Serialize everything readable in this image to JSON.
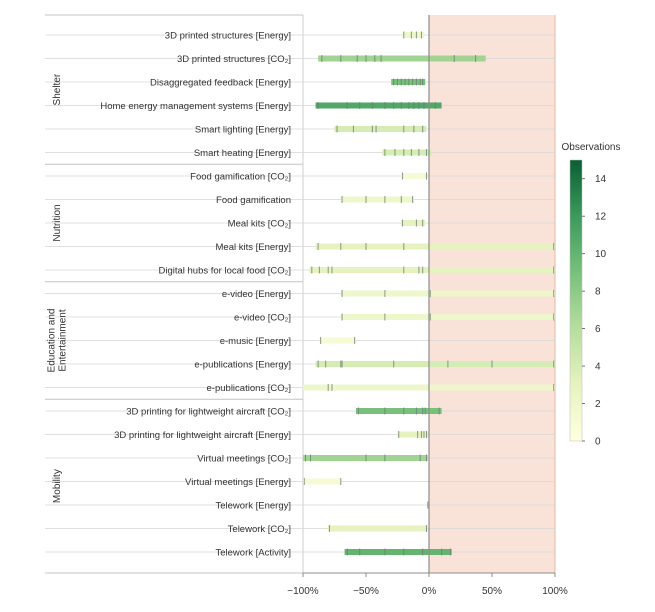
{
  "chart_data": {
    "type": "range-bar",
    "x_axis": {
      "ticks": [
        -100,
        -50,
        0,
        50,
        100
      ],
      "tick_labels": [
        "−100%",
        "−50%",
        "0%",
        "50%",
        "100%"
      ],
      "range": [
        -100,
        100
      ]
    },
    "colorbar": {
      "title": "Observations",
      "range": [
        0,
        15
      ],
      "ticks": [
        0,
        2,
        4,
        6,
        8,
        10,
        12,
        14
      ],
      "tick_labels": [
        "0",
        "2",
        "4",
        "6",
        "8",
        "10",
        "12",
        "14"
      ],
      "colors": [
        "#ffffe0",
        "#e6f3c0",
        "#b7dd9e",
        "#78c07c",
        "#3c9a5c",
        "#0b5e34"
      ]
    },
    "positive_region_color": "#f9e3d9",
    "groups": [
      {
        "label": "Shelter",
        "rows": [
          0,
          5
        ]
      },
      {
        "label": "Nutrition",
        "rows": [
          6,
          10
        ]
      },
      {
        "label": "Education and Entertainment",
        "label_lines": [
          "Education and",
          "Entertainment"
        ],
        "rows": [
          11,
          15
        ]
      },
      {
        "label": "Mobility",
        "rows": [
          16,
          22
        ]
      }
    ],
    "rows": [
      {
        "label": "3D printed structures [Energy]",
        "min": -21,
        "max": -4,
        "observations": 2,
        "markers": [
          -20,
          -14,
          -10,
          -6
        ]
      },
      {
        "label": "3D printed structures [CO₂]",
        "min": -88,
        "max": 45,
        "observations": 7,
        "markers": [
          -85,
          -70,
          -57,
          -50,
          -43,
          -38,
          0,
          20,
          37
        ]
      },
      {
        "label": "Disaggregated feedback [Energy]",
        "min": -30,
        "max": -3,
        "observations": 9,
        "markers": [
          -28,
          -25,
          -22,
          -19,
          -16,
          -13,
          -10,
          -7,
          -5
        ]
      },
      {
        "label": "Home energy management systems [Energy]",
        "min": -90,
        "max": 10,
        "observations": 11,
        "markers": [
          -88,
          -65,
          -55,
          -45,
          -35,
          -28,
          -22,
          -16,
          -12,
          -8,
          -4,
          5
        ]
      },
      {
        "label": "Smart lighting [Energy]",
        "min": -75,
        "max": -2,
        "observations": 4,
        "markers": [
          -73,
          -60,
          -45,
          -42,
          -20,
          -12,
          -5
        ]
      },
      {
        "label": "Smart heating [Energy]",
        "min": -37,
        "max": 2,
        "observations": 4,
        "markers": [
          -35,
          -27,
          -20,
          -14,
          -8,
          -2
        ]
      },
      {
        "label": "Food gamification [CO₂]",
        "min": -22,
        "max": -1,
        "observations": 1,
        "markers": [
          -21,
          -2
        ]
      },
      {
        "label": "Food gamification",
        "min": -70,
        "max": -12,
        "observations": 2,
        "markers": [
          -69,
          -50,
          -35,
          -22,
          -13
        ]
      },
      {
        "label": "Meal kits [CO₂]",
        "min": -22,
        "max": -3,
        "observations": 3,
        "markers": [
          -21,
          -10,
          -5
        ]
      },
      {
        "label": "Meal kits [Energy]",
        "min": -90,
        "max": 100,
        "observations": 3,
        "markers": [
          -88,
          -70,
          -50,
          -20,
          99
        ]
      },
      {
        "label": "Digital hubs for local food [CO₂]",
        "min": -95,
        "max": 100,
        "observations": 3,
        "markers": [
          -93,
          -87,
          -80,
          -77,
          -20,
          -8,
          -5,
          99
        ]
      },
      {
        "label": "e-video [Energy]",
        "min": -70,
        "max": 100,
        "observations": 2,
        "markers": [
          -69,
          -35,
          1,
          99
        ]
      },
      {
        "label": "e-video [CO₂]",
        "min": -70,
        "max": 100,
        "observations": 2,
        "markers": [
          -69,
          -35,
          1,
          99
        ]
      },
      {
        "label": "e-music [Energy]",
        "min": -87,
        "max": -58,
        "observations": 1,
        "markers": [
          -86,
          -59
        ]
      },
      {
        "label": "e-publications [Energy]",
        "min": -90,
        "max": 100,
        "observations": 4,
        "markers": [
          -88,
          -82,
          -70,
          -69,
          -28,
          15,
          50,
          99
        ]
      },
      {
        "label": "e-publications [CO₂]",
        "min": -100,
        "max": 100,
        "observations": 2,
        "markers": [
          -80,
          -77,
          99
        ]
      },
      {
        "label": "3D printing for lightweight aircraft [CO₂]",
        "min": -58,
        "max": 10,
        "observations": 9,
        "markers": [
          -56,
          -35,
          -20,
          -10,
          -5,
          -3,
          8
        ]
      },
      {
        "label": "3D printing for lightweight aircraft [Energy]",
        "min": -25,
        "max": 0,
        "observations": 3,
        "markers": [
          -24,
          -9,
          -6,
          -4,
          -2
        ]
      },
      {
        "label": "Virtual meetings [CO₂]",
        "min": -100,
        "max": -1,
        "observations": 7,
        "markers": [
          -98,
          -94,
          -50,
          -35,
          -7,
          -2
        ]
      },
      {
        "label": "Virtual meetings [Energy]",
        "min": -100,
        "max": -70,
        "observations": 1,
        "markers": [
          -99,
          -70
        ]
      },
      {
        "label": "Telework [Energy]",
        "min": -1,
        "max": 0,
        "observations": 1,
        "markers": [
          -1
        ]
      },
      {
        "label": "Telework [CO₂]",
        "min": -80,
        "max": -1,
        "observations": 3,
        "markers": [
          -79,
          -2
        ]
      },
      {
        "label": "Telework [Activity]",
        "min": -67,
        "max": 18,
        "observations": 10,
        "markers": [
          -65,
          -55,
          -35,
          -20,
          -5,
          10,
          17
        ]
      }
    ]
  }
}
